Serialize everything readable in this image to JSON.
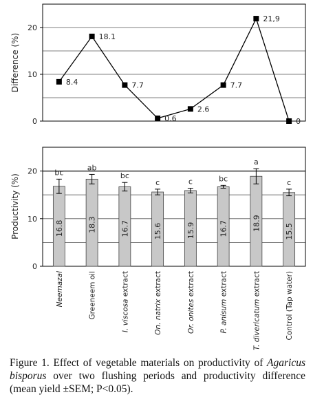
{
  "chart_data": [
    {
      "type": "line",
      "ylabel": "Difference (%)",
      "ylim": [
        0,
        25
      ],
      "yticks": [
        0,
        10,
        20
      ],
      "grid": true,
      "categories": [
        "Neemazal",
        "Greeneem oil",
        "I. viscosa extract",
        "On. natrix extract",
        "Or. onites extract",
        "P. anisum extract",
        "T. divericatum extract",
        "Control (Tap water)"
      ],
      "values": [
        8.4,
        18.1,
        7.7,
        0.6,
        2.6,
        7.7,
        21.9,
        0
      ],
      "data_labels": [
        "8.4",
        "18.1",
        "7.7",
        "0.6",
        "2.6",
        "7.7",
        "21,9",
        "0"
      ]
    },
    {
      "type": "bar",
      "ylabel": "Productivity (%)",
      "ylim": [
        0,
        25
      ],
      "yticks": [
        0,
        10,
        20
      ],
      "grid": true,
      "categories": [
        "Neemazal",
        "Greeneem oil",
        "I. viscosa extract",
        "On. natrix extract",
        "Or. onites extract",
        "P. anisum extract",
        "T. divericatum extract",
        "Control (Tap water)"
      ],
      "values": [
        16.8,
        18.3,
        16.7,
        15.6,
        15.9,
        16.7,
        18.9,
        15.5
      ],
      "data_labels": [
        "16.8",
        "18.3",
        "16.7",
        "15.6",
        "15.9",
        "16.7",
        "18.9",
        "15.5"
      ],
      "error": [
        1.5,
        1.0,
        0.9,
        0.6,
        0.5,
        0.3,
        1.6,
        0.7
      ],
      "letters": [
        "bc",
        "ab",
        "bc",
        "c",
        "c",
        "bc",
        "a",
        "c"
      ],
      "bar_color": "#c8c8c8"
    }
  ],
  "categories_display": [
    {
      "label": "Neemazal",
      "rest": "",
      "italic": true
    },
    {
      "label": "Greeneem oil",
      "rest": "",
      "italic": false
    },
    {
      "label": "I. viscosa",
      "rest": " extract",
      "italic": true
    },
    {
      "label": "On. natrix",
      "rest": " extract",
      "italic": true
    },
    {
      "label": "Or. onites",
      "rest": " extract",
      "italic": true
    },
    {
      "label": "P. anisum",
      "rest": " extract",
      "italic": true
    },
    {
      "label": "T. divericatum",
      "rest": " extract",
      "italic": true
    },
    {
      "label": "Control (Tap water)",
      "rest": "",
      "italic": false
    }
  ],
  "caption": {
    "part1": "Figure 1. Effect of vegetable materials on productivity of ",
    "species": "Agaricus bisporus",
    "part2": " over two flushing periods and productivity difference (mean yield ±SEM; P<0.05)."
  }
}
